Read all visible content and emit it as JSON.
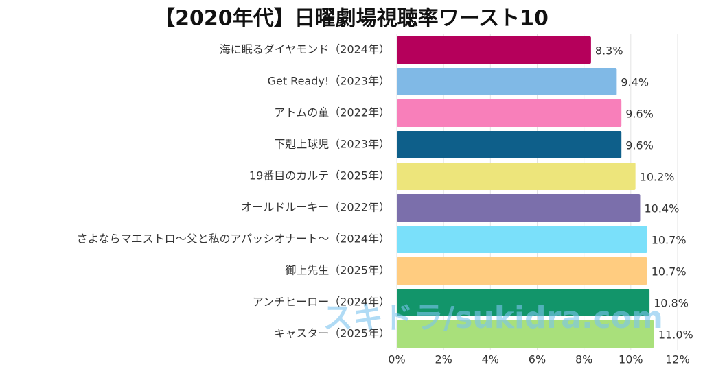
{
  "chart_data": {
    "type": "barh",
    "title": "【2020年代】日曜劇場視聴率ワースト10",
    "categories": [
      "海に眠るダイヤモンド（2024年）",
      "Get Ready!（2023年）",
      "アトムの童（2022年）",
      "下剋上球児（2023年）",
      "19番目のカルテ（2025年）",
      "オールドルーキー（2022年）",
      "さよならマエストロ〜父と私のアパッシオナート〜（2024年）",
      "御上先生（2025年）",
      "アンチヒーロー（2024年）",
      "キャスター（2025年）"
    ],
    "values": [
      8.3,
      9.4,
      9.6,
      9.6,
      10.2,
      10.4,
      10.7,
      10.7,
      10.8,
      11.0
    ],
    "value_labels": [
      "8.3%",
      "9.4%",
      "9.6%",
      "9.6%",
      "10.2%",
      "10.4%",
      "10.7%",
      "10.7%",
      "10.8%",
      "11.0%"
    ],
    "colors": [
      "#b5005b",
      "#80b9e6",
      "#f87fba",
      "#0e5f8a",
      "#ede57b",
      "#7b6fab",
      "#7ae0fa",
      "#ffcc80",
      "#12956a",
      "#a9e07b"
    ],
    "xlim": [
      0,
      12
    ],
    "xticks": [
      {
        "value": 0,
        "label": "0%"
      },
      {
        "value": 2,
        "label": "2%"
      },
      {
        "value": 4,
        "label": "4%"
      },
      {
        "value": 6,
        "label": "6%"
      },
      {
        "value": 8,
        "label": "8%"
      },
      {
        "value": 10,
        "label": "10%"
      },
      {
        "value": 12,
        "label": "12%"
      }
    ],
    "grid": true,
    "annotation": "スキドラ/sukidra.com"
  }
}
